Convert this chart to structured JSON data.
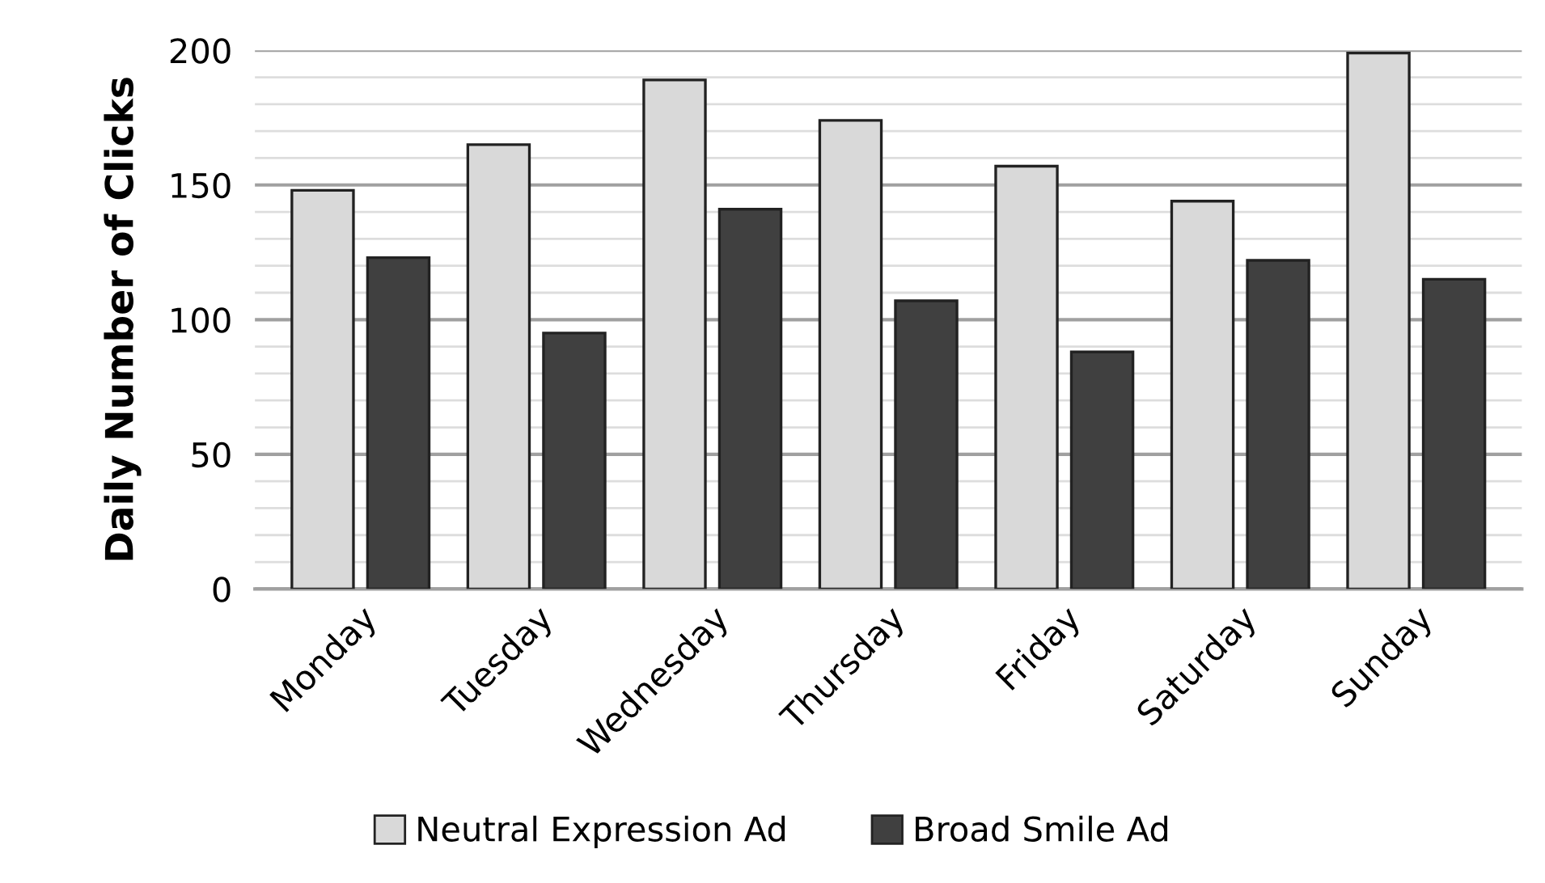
{
  "chart_data": {
    "type": "bar",
    "ylabel": "Daily Number of Clicks",
    "categories": [
      "Monday",
      "Tuesday",
      "Wednesday",
      "Thursday",
      "Friday",
      "Saturday",
      "Sunday"
    ],
    "series": [
      {
        "name": "Neutral Expression Ad",
        "color": "#d9d9d9",
        "values": [
          148,
          165,
          189,
          174,
          157,
          144,
          199
        ]
      },
      {
        "name": "Broad Smile Ad",
        "color": "#404040",
        "values": [
          123,
          95,
          141,
          107,
          88,
          122,
          115
        ]
      }
    ],
    "ylim": [
      0,
      200
    ],
    "yticks": [
      0,
      {
        "value": 10,
        "label": null
      },
      {
        "value": 20,
        "label": null
      },
      {
        "value": 30,
        "label": null
      },
      {
        "value": 40,
        "label": null
      },
      50,
      {
        "value": 60,
        "label": null
      },
      {
        "value": 70,
        "label": null
      },
      {
        "value": 80,
        "label": null
      },
      {
        "value": 90,
        "label": null
      },
      100,
      {
        "value": 110,
        "label": null
      },
      {
        "value": 120,
        "label": null
      },
      {
        "value": 130,
        "label": null
      },
      {
        "value": 140,
        "label": null
      },
      150,
      {
        "value": 160,
        "label": null
      },
      {
        "value": 170,
        "label": null
      },
      {
        "value": 180,
        "label": null
      },
      {
        "value": 190,
        "label": null
      },
      200
    ],
    "grid": "y",
    "legend": "bottom"
  }
}
